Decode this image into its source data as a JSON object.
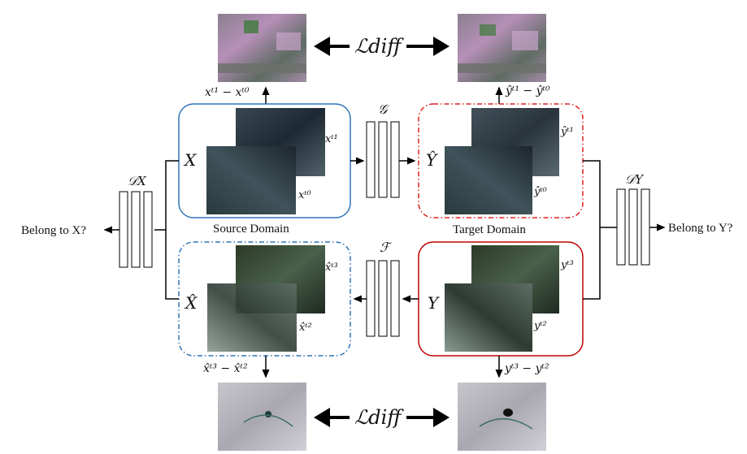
{
  "diagram": {
    "labels": {
      "source_domain": "Source Domain",
      "target_domain": "Target Domain",
      "belong_x": "Belong to X?",
      "belong_y": "Belong to Y?",
      "loss_top": "ℒdiff",
      "loss_bottom": "ℒdiff",
      "gen_g": "𝒢",
      "gen_f": "ℱ",
      "disc_x": "𝒟X",
      "disc_y": "𝒟Y",
      "X": "X",
      "Y": "Y",
      "Y_hat": "Ŷ",
      "X_hat": "X̂",
      "x_t1": "xᵗ¹",
      "x_t0": "xᵗ⁰",
      "yhat_t1": "ŷᵗ¹",
      "yhat_t0": "ŷᵗ⁰",
      "xhat_t3": "x̂ᵗ³",
      "xhat_t2": "x̂ᵗ²",
      "y_t3": "yᵗ³",
      "y_t2": "yᵗ²",
      "diff_x_top": "xᵗ¹ − xᵗ⁰",
      "diff_y_top": "ŷᵗ¹ − ŷᵗ⁰",
      "diff_x_bottom": "x̂ᵗ³ − x̂ᵗ²",
      "diff_y_bottom": "yᵗ³ − yᵗ²"
    },
    "colors": {
      "source_box": "#2e75b6",
      "target_box_dashed": "#e02020",
      "target_box_solid": "#c00000",
      "arrows": "#000000"
    }
  }
}
